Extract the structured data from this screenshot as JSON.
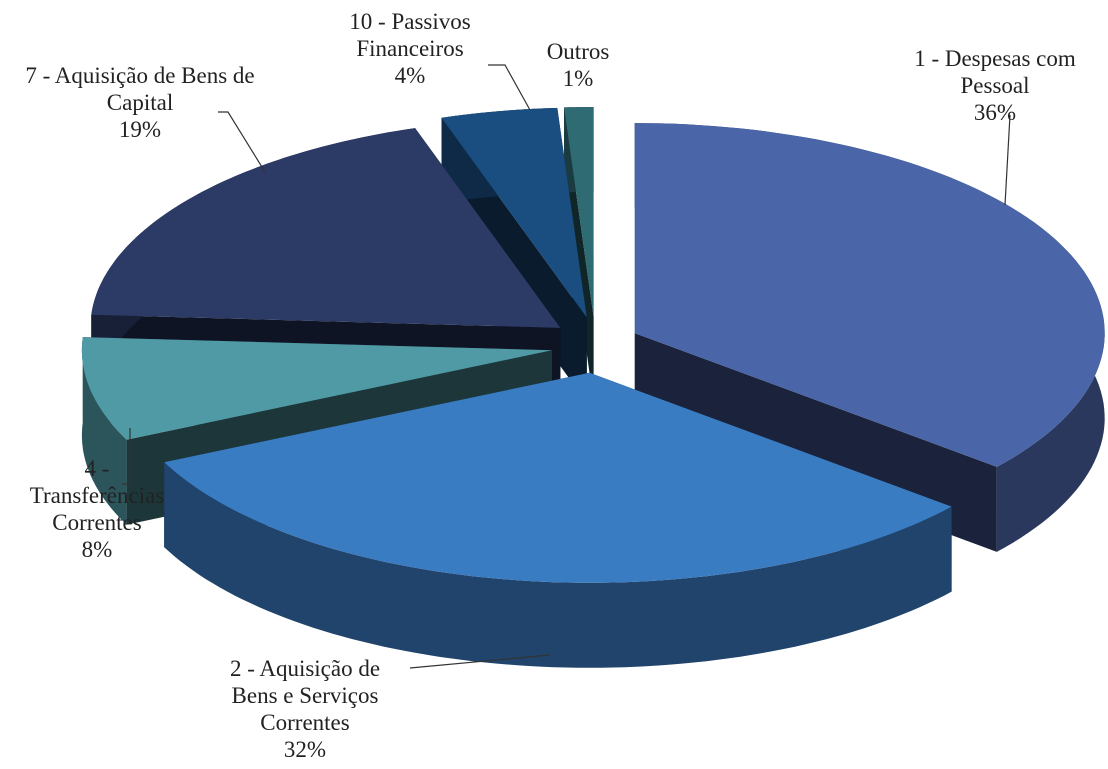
{
  "chart_data": {
    "type": "pie",
    "categories": [
      "1 - Despesas com Pessoal",
      "2 - Aquisição de Bens e Serviços Correntes",
      "4 - Transferências Correntes",
      "7 - Aquisição de Bens de Capital",
      "10 - Passivos Financeiros",
      "Outros"
    ],
    "values": [
      36,
      32,
      8,
      19,
      4,
      1
    ],
    "value_labels": [
      "36%",
      "32%",
      "8%",
      "19%",
      "4%",
      "1%"
    ],
    "colors": [
      "#4a65a8",
      "#3a7cc2",
      "#4f9aa5",
      "#2c3a66",
      "#1a4d80",
      "#2f6b73"
    ]
  }
}
